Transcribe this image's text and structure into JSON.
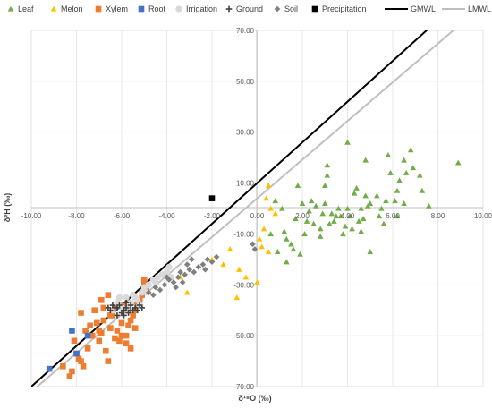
{
  "chart_data": {
    "type": "scatter",
    "xlabel": "δ¹⁸O (‰)",
    "ylabel": "δ²H (‰)",
    "xlim": [
      -10,
      10
    ],
    "ylim": [
      -70,
      70
    ],
    "x_ticks": [
      "-10.00",
      "-8.00",
      "-6.00",
      "-4.00",
      "-2.00",
      "0.00",
      "2.00",
      "4.00",
      "6.00",
      "8.00",
      "10.00"
    ],
    "y_ticks": [
      "-70.00",
      "-50.00",
      "-30.00",
      "-10.00",
      "10.00",
      "30.00",
      "50.00",
      "70.00"
    ],
    "grid": true,
    "legend_position": "top",
    "series": [
      {
        "name": "Leaf",
        "marker": "triangle",
        "color": "#70ad47",
        "points": [
          [
            8.9,
            18
          ],
          [
            6.8,
            23
          ],
          [
            6.5,
            19
          ],
          [
            6.9,
            16
          ],
          [
            7.2,
            13
          ],
          [
            7.6,
            1
          ],
          [
            7.3,
            7
          ],
          [
            6.3,
            11
          ],
          [
            6.2,
            7
          ],
          [
            5.8,
            21
          ],
          [
            5.9,
            14
          ],
          [
            6.6,
            14
          ],
          [
            6.2,
            -3
          ],
          [
            5.7,
            3
          ],
          [
            5.3,
            5
          ],
          [
            5.4,
            -3
          ],
          [
            5.5,
            0
          ],
          [
            5.0,
            2
          ],
          [
            4.8,
            5
          ],
          [
            4.9,
            1
          ],
          [
            4.7,
            -4
          ],
          [
            4.6,
            0
          ],
          [
            4.5,
            -5
          ],
          [
            4.3,
            6
          ],
          [
            4.0,
            26
          ],
          [
            4.0,
            0
          ],
          [
            4.1,
            -3
          ],
          [
            3.8,
            -10
          ],
          [
            3.6,
            0
          ],
          [
            3.5,
            -3
          ],
          [
            3.3,
            -2
          ],
          [
            3.2,
            -6
          ],
          [
            3.1,
            17
          ],
          [
            3.1,
            13
          ],
          [
            3.0,
            9
          ],
          [
            3.0,
            2
          ],
          [
            2.9,
            -2
          ],
          [
            2.8,
            -8
          ],
          [
            2.5,
            -6
          ],
          [
            2.3,
            -1
          ],
          [
            2.2,
            -5
          ],
          [
            2.0,
            2
          ],
          [
            1.8,
            9
          ],
          [
            1.7,
            -4
          ],
          [
            1.6,
            -16
          ],
          [
            1.5,
            -14
          ],
          [
            1.3,
            -12
          ],
          [
            1.2,
            -9
          ],
          [
            1.1,
            0
          ],
          [
            2.4,
            3
          ],
          [
            3.7,
            -3
          ],
          [
            4.4,
            8
          ],
          [
            4.8,
            19
          ],
          [
            5.0,
            -17
          ],
          [
            3.4,
            -5
          ],
          [
            2.6,
            1
          ],
          [
            4.2,
            -8
          ],
          [
            5.6,
            -6
          ],
          [
            6.1,
            3
          ],
          [
            0.6,
            -10
          ],
          [
            0.8,
            3
          ],
          [
            1.3,
            -21
          ],
          [
            1.9,
            -18
          ],
          [
            2.1,
            -10
          ],
          [
            2.8,
            -11
          ],
          [
            3.9,
            -7
          ],
          [
            4.6,
            -9
          ],
          [
            6.5,
            2
          ],
          [
            0.9,
            -17
          ]
        ]
      },
      {
        "name": "Melon",
        "marker": "triangle",
        "color": "#ffc000",
        "points": [
          [
            0.5,
            9
          ],
          [
            0.4,
            4
          ],
          [
            0.6,
            0
          ],
          [
            0.8,
            -2
          ],
          [
            0.3,
            -8
          ],
          [
            0.2,
            -15
          ],
          [
            0.5,
            -17
          ],
          [
            0.0,
            -29
          ],
          [
            -0.5,
            -27
          ],
          [
            -0.9,
            -35
          ],
          [
            -1.5,
            -22
          ],
          [
            -2.0,
            -20
          ],
          [
            -3.1,
            -33
          ],
          [
            -3.4,
            -27
          ],
          [
            -1.2,
            -16
          ],
          [
            0.1,
            -12
          ],
          [
            -0.8,
            -24
          ]
        ]
      },
      {
        "name": "Xylem",
        "marker": "square",
        "color": "#ed7d31",
        "points": [
          [
            -8.3,
            -66
          ],
          [
            -8.6,
            -62
          ],
          [
            -8.0,
            -57
          ],
          [
            -8.1,
            -52
          ],
          [
            -7.9,
            -59
          ],
          [
            -7.8,
            -60
          ],
          [
            -7.5,
            -55
          ],
          [
            -7.6,
            -48
          ],
          [
            -7.4,
            -46
          ],
          [
            -7.3,
            -50
          ],
          [
            -7.1,
            -45
          ],
          [
            -7.0,
            -52
          ],
          [
            -6.9,
            -49
          ],
          [
            -6.8,
            -44
          ],
          [
            -6.7,
            -56
          ],
          [
            -6.6,
            -60
          ],
          [
            -6.5,
            -47
          ],
          [
            -6.4,
            -42
          ],
          [
            -6.3,
            -39
          ],
          [
            -6.2,
            -48
          ],
          [
            -6.1,
            -52
          ],
          [
            -6.0,
            -45
          ],
          [
            -5.9,
            -38
          ],
          [
            -5.8,
            -50
          ],
          [
            -5.7,
            -46
          ],
          [
            -5.6,
            -44
          ],
          [
            -5.5,
            -42
          ],
          [
            -5.4,
            -40
          ],
          [
            -5.3,
            -38
          ],
          [
            -5.2,
            -36
          ],
          [
            -5.1,
            -34
          ],
          [
            -5.0,
            -30
          ],
          [
            -4.9,
            -32
          ],
          [
            -5.0,
            -28
          ],
          [
            -7.8,
            -41
          ],
          [
            -7.2,
            -40
          ],
          [
            -6.9,
            -36
          ],
          [
            -6.6,
            -34
          ],
          [
            -6.3,
            -51
          ],
          [
            -5.8,
            -53
          ],
          [
            -5.6,
            -55
          ],
          [
            -7.7,
            -62
          ],
          [
            -8.2,
            -64
          ],
          [
            -6.0,
            -50
          ],
          [
            -5.4,
            -47
          ],
          [
            -6.8,
            -39
          ],
          [
            -7.0,
            -48
          ],
          [
            -6.5,
            -42
          ]
        ]
      },
      {
        "name": "Root",
        "marker": "square",
        "color": "#4472c4",
        "points": [
          [
            -9.2,
            -63
          ],
          [
            -8.2,
            -48
          ],
          [
            -8.0,
            -57
          ],
          [
            -7.5,
            -50
          ]
        ]
      },
      {
        "name": "Irrigation",
        "marker": "circle",
        "color": "#d9d9d9",
        "points": [
          [
            -6.2,
            -37
          ],
          [
            -6.0,
            -39
          ],
          [
            -5.8,
            -35
          ],
          [
            -5.6,
            -37
          ],
          [
            -5.5,
            -34
          ],
          [
            -5.3,
            -36
          ],
          [
            -5.1,
            -33
          ],
          [
            -5.0,
            -31
          ],
          [
            -4.8,
            -30
          ],
          [
            -4.6,
            -28
          ],
          [
            -4.4,
            -27
          ],
          [
            -4.2,
            -26
          ],
          [
            -4.0,
            -25
          ],
          [
            -3.9,
            -23
          ],
          [
            -5.9,
            -40
          ],
          [
            -5.7,
            -38
          ],
          [
            -5.4,
            -35
          ],
          [
            -6.4,
            -40
          ],
          [
            -4.9,
            -33
          ],
          [
            -4.5,
            -29
          ],
          [
            -3.8,
            -27
          ],
          [
            -5.2,
            -38
          ],
          [
            -6.1,
            -35
          ]
        ]
      },
      {
        "name": "Ground",
        "marker": "plus",
        "color": "#404040",
        "points": [
          [
            -6.5,
            -40
          ],
          [
            -6.3,
            -39
          ],
          [
            -6.2,
            -42
          ],
          [
            -6.1,
            -38
          ],
          [
            -6.0,
            -41
          ],
          [
            -5.9,
            -40
          ],
          [
            -5.8,
            -39
          ],
          [
            -5.7,
            -41
          ],
          [
            -5.6,
            -38
          ],
          [
            -5.5,
            -40
          ],
          [
            -5.4,
            -39
          ],
          [
            -5.3,
            -40
          ],
          [
            -5.2,
            -38
          ],
          [
            -5.1,
            -39
          ],
          [
            -6.4,
            -38
          ],
          [
            -6.6,
            -39
          ],
          [
            -5.9,
            -42
          ],
          [
            -5.6,
            -40
          ],
          [
            -5.8,
            -37
          ],
          [
            -6.2,
            -39
          ]
        ]
      },
      {
        "name": "Soil",
        "marker": "diamond",
        "color": "#7f7f7f",
        "points": [
          [
            -4.8,
            -33
          ],
          [
            -4.5,
            -31
          ],
          [
            -4.3,
            -32
          ],
          [
            -4.1,
            -30
          ],
          [
            -3.9,
            -28
          ],
          [
            -3.7,
            -29
          ],
          [
            -3.5,
            -27
          ],
          [
            -3.4,
            -25
          ],
          [
            -3.2,
            -26
          ],
          [
            -3.0,
            -24
          ],
          [
            -2.8,
            -25
          ],
          [
            -2.6,
            -23
          ],
          [
            -2.4,
            -22
          ],
          [
            -2.2,
            -20
          ],
          [
            -2.0,
            -21
          ],
          [
            -1.8,
            -19
          ],
          [
            -0.2,
            -14
          ],
          [
            -0.1,
            -16
          ],
          [
            -3.6,
            -31
          ],
          [
            -3.3,
            -29
          ],
          [
            -4.0,
            -27
          ],
          [
            -2.9,
            -20
          ],
          [
            -4.6,
            -34
          ],
          [
            -3.1,
            -22
          ],
          [
            -2.3,
            -24
          ]
        ]
      },
      {
        "name": "Precipitation",
        "marker": "square",
        "color": "#000000",
        "points": [
          [
            -2.0,
            4
          ]
        ]
      }
    ],
    "lines": [
      {
        "name": "GMWL",
        "color": "#000000",
        "slope": 8,
        "intercept": 10
      },
      {
        "name": "LMWL",
        "color": "#bfbfbf",
        "slope": 7.6,
        "intercept": 4
      }
    ]
  }
}
